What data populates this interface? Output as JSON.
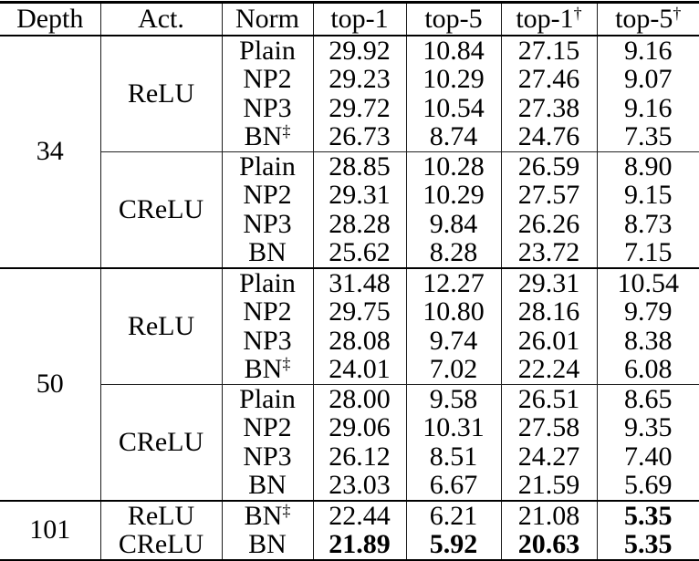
{
  "table": {
    "headers": [
      {
        "label": "Depth",
        "sup": ""
      },
      {
        "label": "Act.",
        "sup": ""
      },
      {
        "label": "Norm",
        "sup": ""
      },
      {
        "label": "top-1",
        "sup": ""
      },
      {
        "label": "top-5",
        "sup": ""
      },
      {
        "label": "top-1",
        "sup": "†"
      },
      {
        "label": "top-5",
        "sup": "†"
      }
    ],
    "sections": [
      {
        "depth": "34",
        "groups": [
          {
            "act": "ReLU",
            "divider_after": true,
            "rows": [
              {
                "norm": "Plain",
                "norm_sup": "",
                "values": [
                  "29.92",
                  "10.84",
                  "27.15",
                  "9.16"
                ],
                "bold": [
                  false,
                  false,
                  false,
                  false
                ]
              },
              {
                "norm": "NP2",
                "norm_sup": "",
                "values": [
                  "29.23",
                  "10.29",
                  "27.46",
                  "9.07"
                ],
                "bold": [
                  false,
                  false,
                  false,
                  false
                ]
              },
              {
                "norm": "NP3",
                "norm_sup": "",
                "values": [
                  "29.72",
                  "10.54",
                  "27.38",
                  "9.16"
                ],
                "bold": [
                  false,
                  false,
                  false,
                  false
                ]
              },
              {
                "norm": "BN",
                "norm_sup": "‡",
                "values": [
                  "26.73",
                  "8.74",
                  "24.76",
                  "7.35"
                ],
                "bold": [
                  false,
                  false,
                  false,
                  false
                ]
              }
            ]
          },
          {
            "act": "CReLU",
            "divider_after": false,
            "rows": [
              {
                "norm": "Plain",
                "norm_sup": "",
                "values": [
                  "28.85",
                  "10.28",
                  "26.59",
                  "8.90"
                ],
                "bold": [
                  false,
                  false,
                  false,
                  false
                ]
              },
              {
                "norm": "NP2",
                "norm_sup": "",
                "values": [
                  "29.31",
                  "10.29",
                  "27.57",
                  "9.15"
                ],
                "bold": [
                  false,
                  false,
                  false,
                  false
                ]
              },
              {
                "norm": "NP3",
                "norm_sup": "",
                "values": [
                  "28.28",
                  "9.84",
                  "26.26",
                  "8.73"
                ],
                "bold": [
                  false,
                  false,
                  false,
                  false
                ]
              },
              {
                "norm": "BN",
                "norm_sup": "",
                "values": [
                  "25.62",
                  "8.28",
                  "23.72",
                  "7.15"
                ],
                "bold": [
                  false,
                  false,
                  false,
                  false
                ]
              }
            ]
          }
        ]
      },
      {
        "depth": "50",
        "groups": [
          {
            "act": "ReLU",
            "divider_after": true,
            "rows": [
              {
                "norm": "Plain",
                "norm_sup": "",
                "values": [
                  "31.48",
                  "12.27",
                  "29.31",
                  "10.54"
                ],
                "bold": [
                  false,
                  false,
                  false,
                  false
                ]
              },
              {
                "norm": "NP2",
                "norm_sup": "",
                "values": [
                  "29.75",
                  "10.80",
                  "28.16",
                  "9.79"
                ],
                "bold": [
                  false,
                  false,
                  false,
                  false
                ]
              },
              {
                "norm": "NP3",
                "norm_sup": "",
                "values": [
                  "28.08",
                  "9.74",
                  "26.01",
                  "8.38"
                ],
                "bold": [
                  false,
                  false,
                  false,
                  false
                ]
              },
              {
                "norm": "BN",
                "norm_sup": "‡",
                "values": [
                  "24.01",
                  "7.02",
                  "22.24",
                  "6.08"
                ],
                "bold": [
                  false,
                  false,
                  false,
                  false
                ]
              }
            ]
          },
          {
            "act": "CReLU",
            "divider_after": false,
            "rows": [
              {
                "norm": "Plain",
                "norm_sup": "",
                "values": [
                  "28.00",
                  "9.58",
                  "26.51",
                  "8.65"
                ],
                "bold": [
                  false,
                  false,
                  false,
                  false
                ]
              },
              {
                "norm": "NP2",
                "norm_sup": "",
                "values": [
                  "29.06",
                  "10.31",
                  "27.58",
                  "9.35"
                ],
                "bold": [
                  false,
                  false,
                  false,
                  false
                ]
              },
              {
                "norm": "NP3",
                "norm_sup": "",
                "values": [
                  "26.12",
                  "8.51",
                  "24.27",
                  "7.40"
                ],
                "bold": [
                  false,
                  false,
                  false,
                  false
                ]
              },
              {
                "norm": "BN",
                "norm_sup": "",
                "values": [
                  "23.03",
                  "6.67",
                  "21.59",
                  "5.69"
                ],
                "bold": [
                  false,
                  false,
                  false,
                  false
                ]
              }
            ]
          }
        ]
      },
      {
        "depth": "101",
        "groups": [
          {
            "act": "ReLU",
            "divider_after": false,
            "rows": [
              {
                "norm": "BN",
                "norm_sup": "‡",
                "values": [
                  "22.44",
                  "6.21",
                  "21.08",
                  "5.35"
                ],
                "bold": [
                  false,
                  false,
                  false,
                  true
                ]
              }
            ]
          },
          {
            "act": "CReLU",
            "divider_after": false,
            "rows": [
              {
                "norm": "BN",
                "norm_sup": "",
                "values": [
                  "21.89",
                  "5.92",
                  "20.63",
                  "5.35"
                ],
                "bold": [
                  true,
                  true,
                  true,
                  true
                ]
              }
            ]
          }
        ]
      }
    ]
  }
}
